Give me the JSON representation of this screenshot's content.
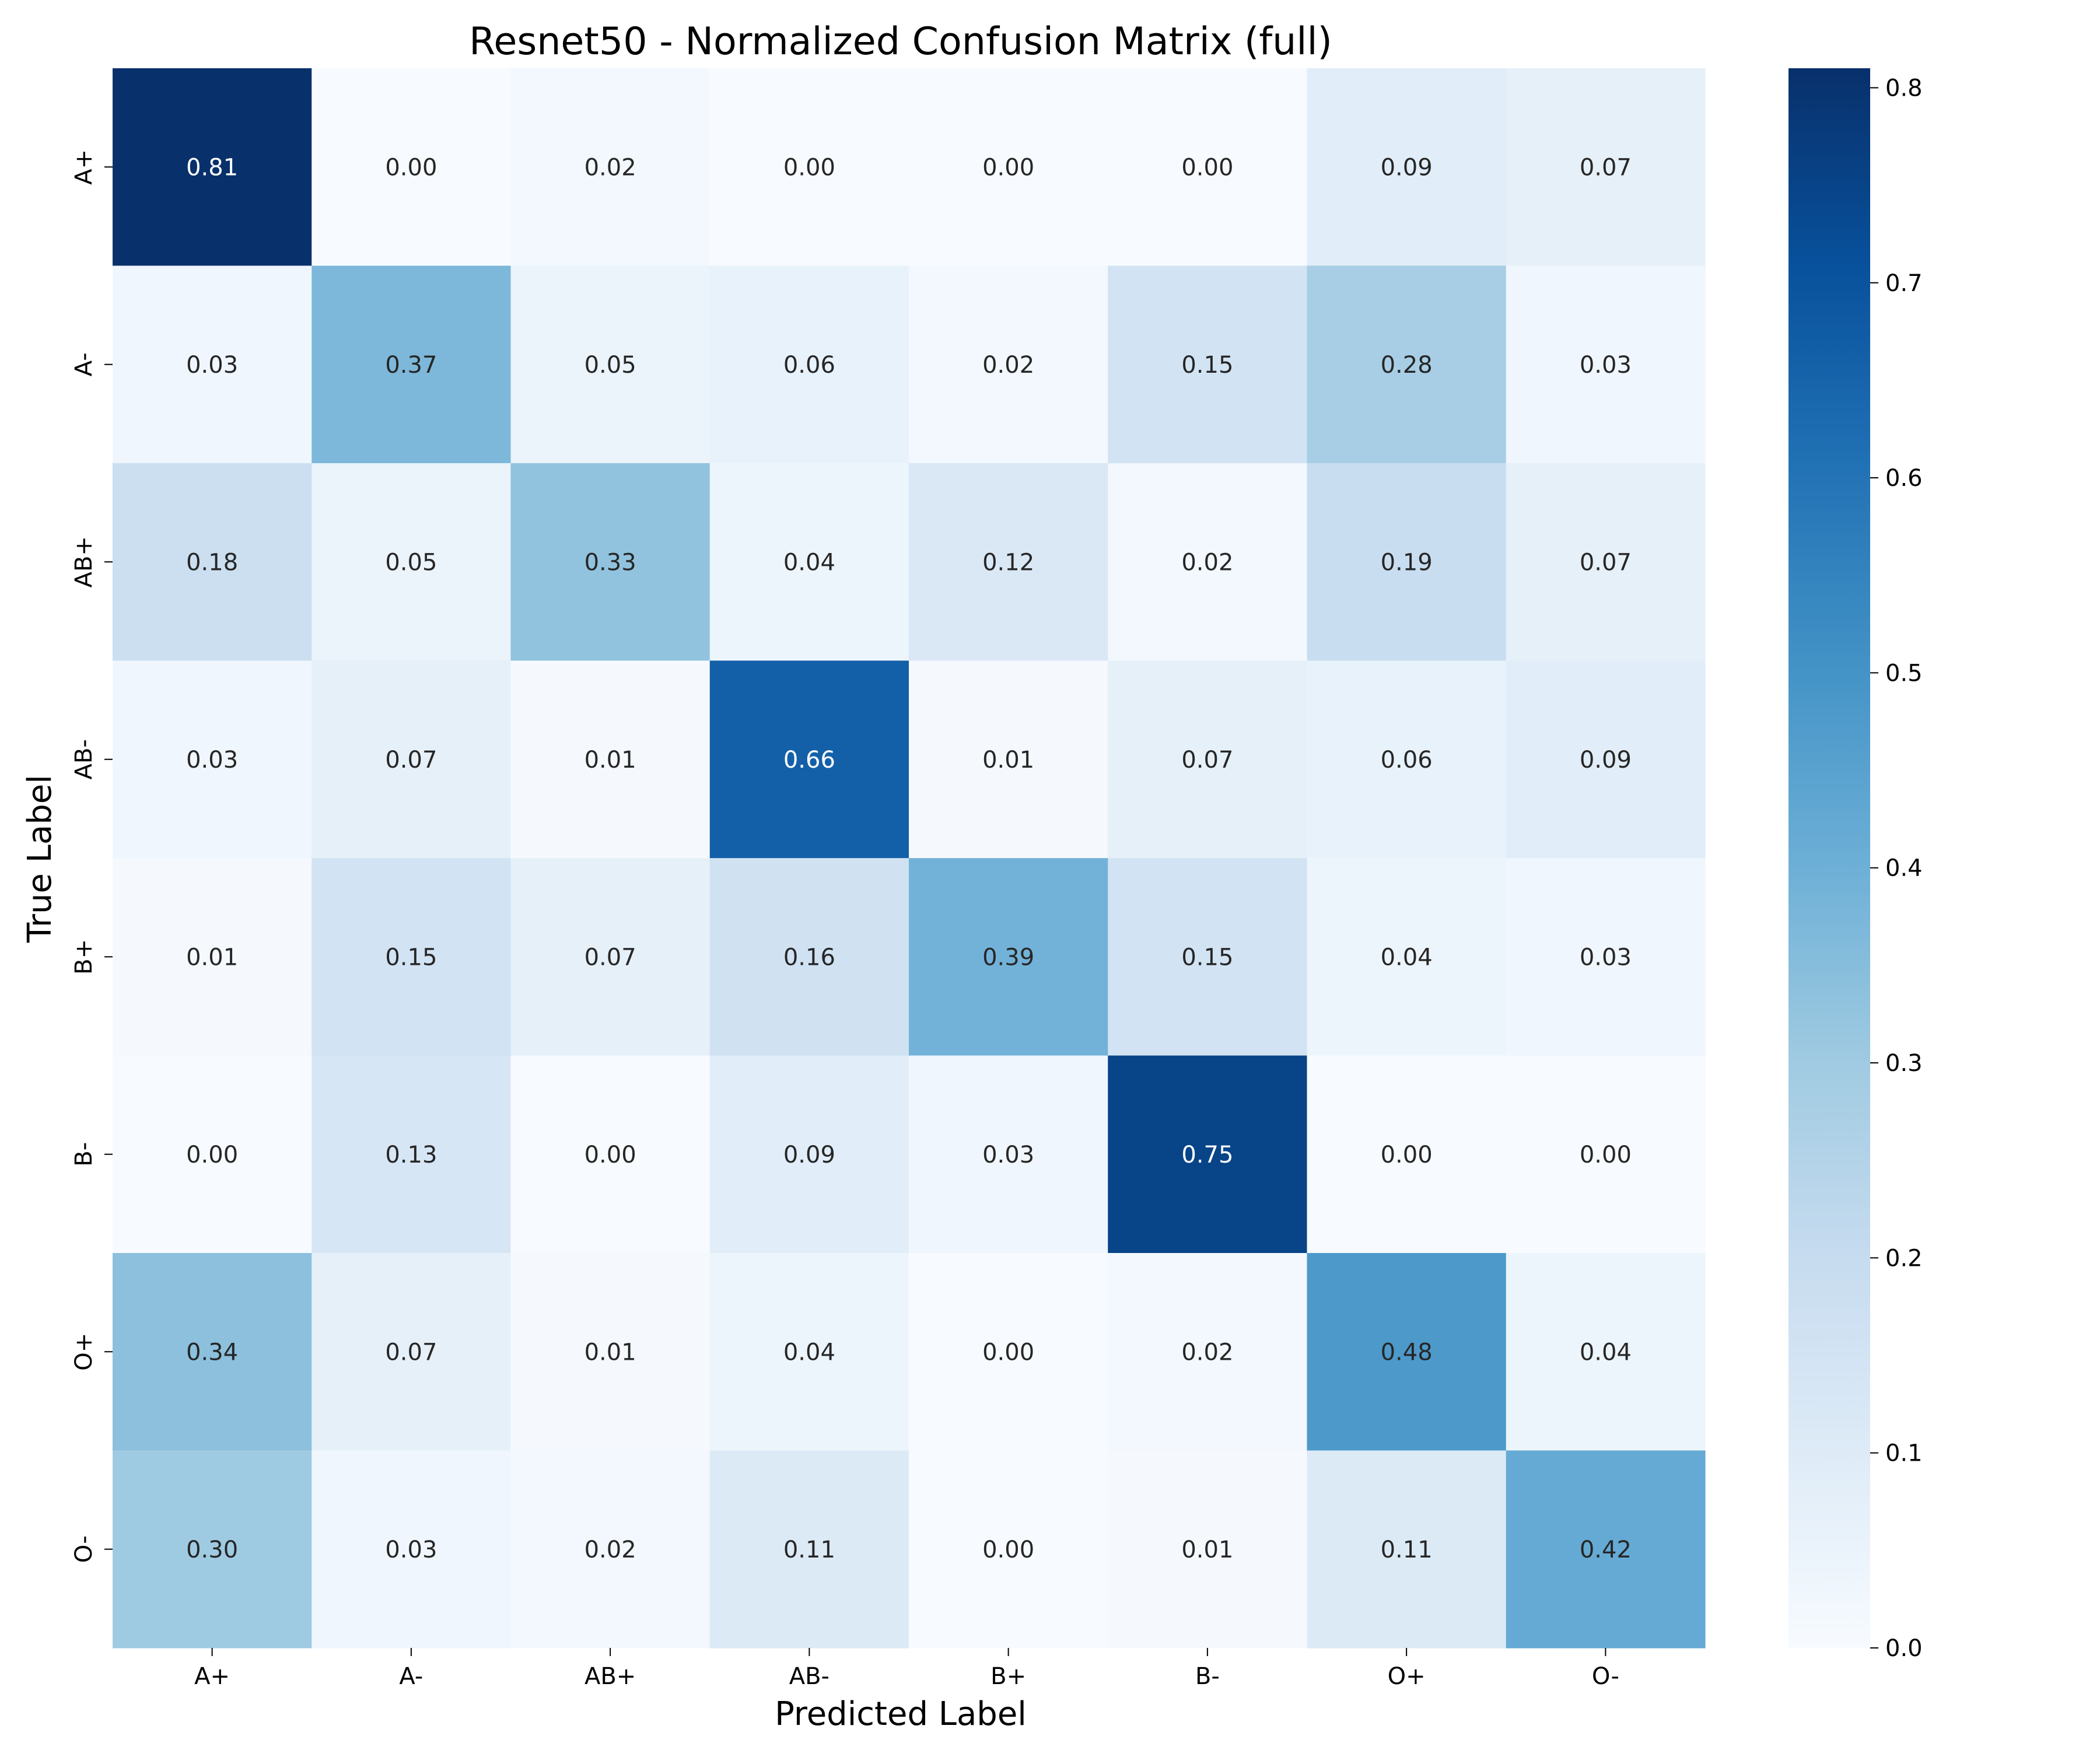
{
  "chart_data": {
    "type": "heatmap",
    "title": "Resnet50 - Normalized Confusion Matrix (full)",
    "xlabel": "Predicted Label",
    "ylabel": "True Label",
    "x_categories": [
      "A+",
      "A-",
      "AB+",
      "AB-",
      "B+",
      "B-",
      "O+",
      "O-"
    ],
    "y_categories": [
      "A+",
      "A-",
      "AB+",
      "AB-",
      "B+",
      "B-",
      "O+",
      "O-"
    ],
    "values": [
      [
        0.81,
        0.0,
        0.02,
        0.0,
        0.0,
        0.0,
        0.09,
        0.07
      ],
      [
        0.03,
        0.37,
        0.05,
        0.06,
        0.02,
        0.15,
        0.28,
        0.03
      ],
      [
        0.18,
        0.05,
        0.33,
        0.04,
        0.12,
        0.02,
        0.19,
        0.07
      ],
      [
        0.03,
        0.07,
        0.01,
        0.66,
        0.01,
        0.07,
        0.06,
        0.09
      ],
      [
        0.01,
        0.15,
        0.07,
        0.16,
        0.39,
        0.15,
        0.04,
        0.03
      ],
      [
        0.0,
        0.13,
        0.0,
        0.09,
        0.03,
        0.75,
        0.0,
        0.0
      ],
      [
        0.34,
        0.07,
        0.01,
        0.04,
        0.0,
        0.02,
        0.48,
        0.04
      ],
      [
        0.3,
        0.03,
        0.02,
        0.11,
        0.0,
        0.01,
        0.11,
        0.42
      ]
    ],
    "value_format": "0.00",
    "colormap": "Blues",
    "colormap_stops": [
      "#f7fbff",
      "#deebf7",
      "#c6dbef",
      "#9ecae1",
      "#6baed6",
      "#4292c6",
      "#2171b5",
      "#08519c",
      "#08306b"
    ],
    "vmin": 0.0,
    "vmax": 0.81,
    "colorbar_ticks": [
      "0.0",
      "0.1",
      "0.2",
      "0.3",
      "0.4",
      "0.5",
      "0.6",
      "0.7",
      "0.8"
    ],
    "colorbar_tick_values": [
      0.0,
      0.1,
      0.2,
      0.3,
      0.4,
      0.5,
      0.6,
      0.7,
      0.8
    ],
    "grid": false,
    "legend": "colorbar-right"
  }
}
